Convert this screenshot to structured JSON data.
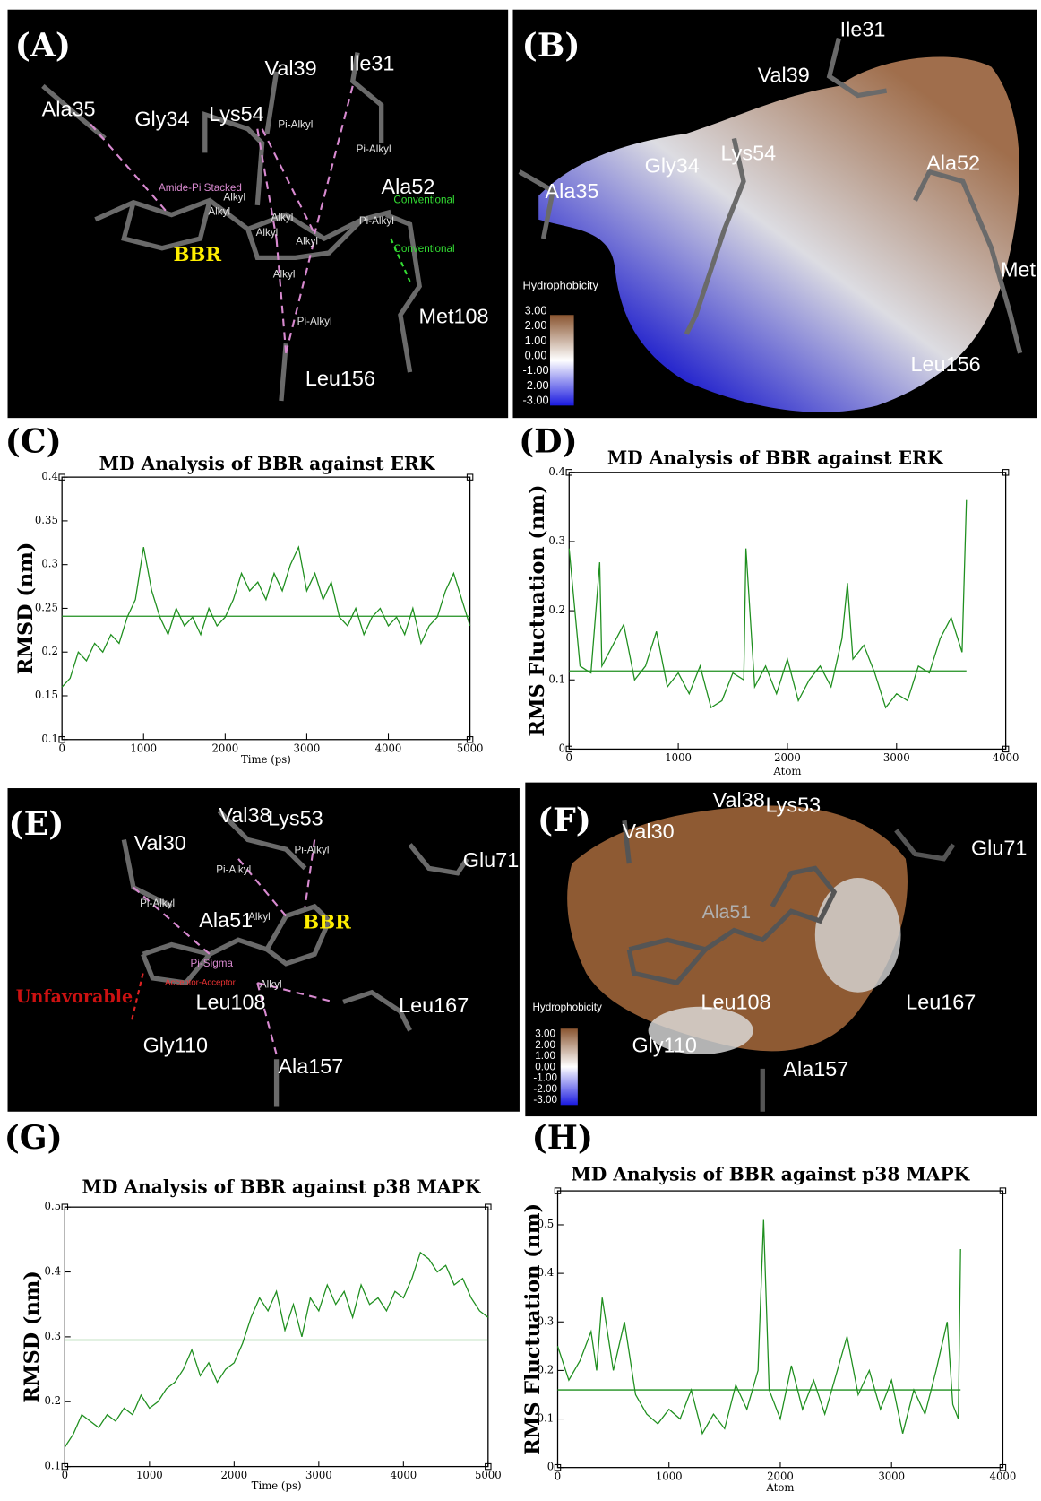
{
  "panels": [
    {
      "labels": [
        "(A)",
        "Ala35",
        "Gly34",
        "Lys54",
        "Val39",
        "Ile31",
        "Ala52",
        "Met108",
        "Leu156",
        "BBR",
        "Pi-Alkyl",
        "Pi-Alkyl",
        "Amide-Pi Stacked",
        "Alkyl",
        "Alkyl",
        "Alkyl",
        "Alkyl",
        "Alkyl",
        "Alkyl",
        "Pi-Alkyl",
        "Pi-Alkyl",
        "Conventional",
        "Conventional"
      ]
    },
    {
      "labels": [
        "(B)",
        "Ile31",
        "Val39",
        "Lys54",
        "Gly34",
        "Ala35",
        "Ala52",
        "Met",
        "Leu156"
      ],
      "legend_title": "Hydrophobicity",
      "legend_ticks": [
        "3.00",
        "2.00",
        "1.00",
        "0.00",
        "-1.00",
        "-2.00",
        "-3.00"
      ]
    },
    {
      "labels": [
        "(E)",
        "Val30",
        "Val38",
        "Lys53",
        "Glu71",
        "BBR",
        "Ala51",
        "Unfavorable",
        "Leu108",
        "Leu167",
        "Gly110",
        "Ala157",
        "Pi-Alkyl",
        "Pi-Alkyl",
        "Pi-Alkyl",
        "Pi-Sigma",
        "Acceptor-Acceptor",
        "Alkyl",
        "Alkyl"
      ]
    },
    {
      "labels": [
        "(F)",
        "Val30",
        "Val38",
        "Lys53",
        "Glu71",
        "Ala51",
        "Leu108",
        "Leu167",
        "Gly110",
        "Ala157"
      ],
      "legend_title": "Hydrophobicity",
      "legend_ticks": [
        "3.00",
        "2.00",
        "1.00",
        "0.00",
        "-1.00",
        "-2.00",
        "-3.00"
      ]
    }
  ],
  "chart_data": [
    {
      "type": "line",
      "tag": "(C)",
      "title": "MD Analysis of BBR against ERK",
      "xlabel": "Time (ps)",
      "ylabel": "RMSD (nm)",
      "xlim": [
        0,
        5000
      ],
      "ylim": [
        0.1,
        0.4
      ],
      "xticks": [
        0,
        1000,
        2000,
        3000,
        4000,
        5000
      ],
      "yticks": [
        0.1,
        0.15,
        0.2,
        0.25,
        0.3,
        0.35,
        0.4
      ],
      "color": "#1f8f1f",
      "hline": 0.241,
      "x": [
        0,
        100,
        200,
        300,
        400,
        500,
        600,
        700,
        800,
        900,
        1000,
        1100,
        1200,
        1300,
        1400,
        1500,
        1600,
        1700,
        1800,
        1900,
        2000,
        2100,
        2200,
        2300,
        2400,
        2500,
        2600,
        2700,
        2800,
        2900,
        3000,
        3100,
        3200,
        3300,
        3400,
        3500,
        3600,
        3700,
        3800,
        3900,
        4000,
        4100,
        4200,
        4300,
        4400,
        4500,
        4600,
        4700,
        4800,
        4900,
        5000
      ],
      "values": [
        0.16,
        0.17,
        0.2,
        0.19,
        0.21,
        0.2,
        0.22,
        0.21,
        0.24,
        0.26,
        0.32,
        0.27,
        0.24,
        0.22,
        0.25,
        0.23,
        0.24,
        0.22,
        0.25,
        0.23,
        0.24,
        0.26,
        0.29,
        0.27,
        0.28,
        0.26,
        0.29,
        0.27,
        0.3,
        0.32,
        0.27,
        0.29,
        0.26,
        0.28,
        0.24,
        0.23,
        0.25,
        0.22,
        0.24,
        0.25,
        0.23,
        0.24,
        0.22,
        0.25,
        0.21,
        0.23,
        0.24,
        0.27,
        0.29,
        0.26,
        0.23
      ]
    },
    {
      "type": "line",
      "tag": "(D)",
      "title": "MD Analysis of BBR against ERK",
      "xlabel": "Atom",
      "ylabel": "RMS Fluctuation (nm)",
      "xlim": [
        0,
        4000
      ],
      "ylim": [
        0,
        0.4
      ],
      "xticks": [
        0,
        1000,
        2000,
        3000,
        4000
      ],
      "yticks": [
        0,
        0.1,
        0.2,
        0.3,
        0.4
      ],
      "color": "#1f8f1f",
      "hline": 0.113,
      "x": [
        0,
        100,
        200,
        280,
        300,
        400,
        500,
        600,
        700,
        800,
        900,
        1000,
        1100,
        1200,
        1300,
        1400,
        1500,
        1600,
        1620,
        1700,
        1800,
        1900,
        2000,
        2100,
        2200,
        2300,
        2400,
        2500,
        2550,
        2600,
        2700,
        2800,
        2900,
        3000,
        3100,
        3200,
        3300,
        3400,
        3500,
        3600,
        3640
      ],
      "values": [
        0.29,
        0.12,
        0.11,
        0.27,
        0.12,
        0.15,
        0.18,
        0.1,
        0.12,
        0.17,
        0.09,
        0.11,
        0.08,
        0.12,
        0.06,
        0.07,
        0.11,
        0.1,
        0.29,
        0.09,
        0.12,
        0.08,
        0.13,
        0.07,
        0.1,
        0.12,
        0.09,
        0.16,
        0.24,
        0.13,
        0.15,
        0.11,
        0.06,
        0.08,
        0.07,
        0.12,
        0.11,
        0.16,
        0.19,
        0.14,
        0.36
      ]
    },
    {
      "type": "line",
      "tag": "(G)",
      "title": "MD Analysis of BBR against p38 MAPK",
      "xlabel": "Time (ps)",
      "ylabel": "RMSD (nm)",
      "xlim": [
        0,
        5000
      ],
      "ylim": [
        0.1,
        0.5
      ],
      "xticks": [
        0,
        1000,
        2000,
        3000,
        4000,
        5000
      ],
      "yticks": [
        0.1,
        0.2,
        0.3,
        0.4,
        0.5
      ],
      "color": "#1f8f1f",
      "hline": 0.295,
      "x": [
        0,
        100,
        200,
        300,
        400,
        500,
        600,
        700,
        800,
        900,
        1000,
        1100,
        1200,
        1300,
        1400,
        1500,
        1600,
        1700,
        1800,
        1900,
        2000,
        2100,
        2200,
        2300,
        2400,
        2500,
        2600,
        2700,
        2800,
        2900,
        3000,
        3100,
        3200,
        3300,
        3400,
        3500,
        3600,
        3700,
        3800,
        3900,
        4000,
        4100,
        4200,
        4300,
        4400,
        4500,
        4600,
        4700,
        4800,
        4900,
        5000
      ],
      "values": [
        0.13,
        0.15,
        0.18,
        0.17,
        0.16,
        0.18,
        0.17,
        0.19,
        0.18,
        0.21,
        0.19,
        0.2,
        0.22,
        0.23,
        0.25,
        0.28,
        0.24,
        0.26,
        0.23,
        0.25,
        0.26,
        0.29,
        0.33,
        0.36,
        0.34,
        0.37,
        0.31,
        0.35,
        0.3,
        0.36,
        0.34,
        0.38,
        0.35,
        0.37,
        0.33,
        0.38,
        0.35,
        0.36,
        0.34,
        0.37,
        0.36,
        0.39,
        0.43,
        0.42,
        0.4,
        0.41,
        0.38,
        0.39,
        0.36,
        0.34,
        0.33
      ]
    },
    {
      "type": "line",
      "tag": "(H)",
      "title": "MD Analysis of BBR against p38 MAPK",
      "xlabel": "Atom",
      "ylabel": "RMS Fluctuation (nm)",
      "xlim": [
        0,
        4000
      ],
      "ylim": [
        0,
        0.57
      ],
      "xticks": [
        0,
        1000,
        2000,
        3000,
        4000
      ],
      "yticks": [
        0,
        0.1,
        0.2,
        0.3,
        0.4,
        0.5
      ],
      "color": "#1f8f1f",
      "hline": 0.16,
      "x": [
        0,
        100,
        200,
        300,
        350,
        400,
        500,
        550,
        600,
        700,
        800,
        900,
        1000,
        1100,
        1200,
        1300,
        1400,
        1500,
        1600,
        1700,
        1800,
        1850,
        1900,
        2000,
        2100,
        2200,
        2300,
        2400,
        2500,
        2600,
        2700,
        2800,
        2900,
        3000,
        3100,
        3200,
        3300,
        3400,
        3500,
        3550,
        3600,
        3620
      ],
      "values": [
        0.25,
        0.18,
        0.22,
        0.28,
        0.2,
        0.35,
        0.2,
        0.25,
        0.3,
        0.15,
        0.11,
        0.09,
        0.12,
        0.1,
        0.16,
        0.07,
        0.11,
        0.08,
        0.17,
        0.12,
        0.2,
        0.51,
        0.16,
        0.1,
        0.21,
        0.12,
        0.18,
        0.11,
        0.19,
        0.27,
        0.15,
        0.2,
        0.12,
        0.18,
        0.07,
        0.16,
        0.11,
        0.2,
        0.3,
        0.13,
        0.1,
        0.45
      ]
    }
  ]
}
